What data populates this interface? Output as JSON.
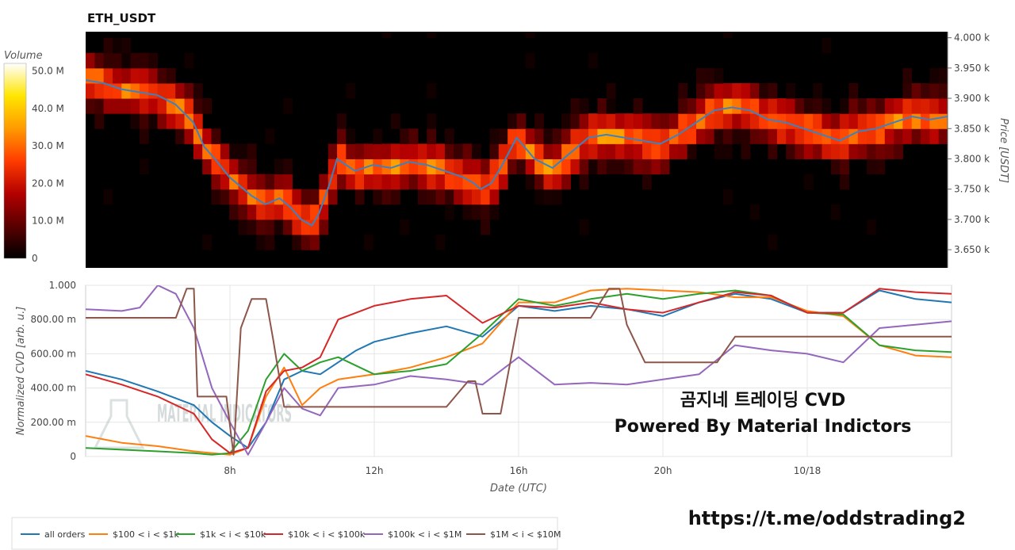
{
  "chart_data": [
    {
      "type": "heatmap",
      "title": "ETH_USDT",
      "ylabel": "Price [USDT]",
      "ylim": [
        3620,
        4010
      ],
      "price_bins": [
        3650,
        3675,
        3700,
        3725,
        3750,
        3775,
        3800,
        3825,
        3850,
        3875,
        3900,
        3925,
        3950,
        3975,
        4000
      ],
      "y_ticks": [
        3650,
        3700,
        3750,
        3800,
        3850,
        3900,
        3950,
        4000
      ],
      "y_tick_labels": [
        "3.650 k",
        "3.700 k",
        "3.750 k",
        "3.800 k",
        "3.850 k",
        "3.900 k",
        "3.950 k",
        "4.000 k"
      ],
      "colorbar": {
        "title": "Volume",
        "ticks": [
          0,
          10,
          20,
          30,
          40,
          50
        ],
        "tick_labels": [
          "0",
          "10.0 M",
          "20.0 M",
          "30.0 M",
          "40.0 M",
          "50.0 M"
        ],
        "colors": [
          "#000000",
          "#5a0000",
          "#b40000",
          "#ff3c00",
          "#ff9b00",
          "#ffe600",
          "#ffffff"
        ]
      },
      "price_line": {
        "name": "price",
        "color": "#3b82c4",
        "x": [
          4.0,
          4.5,
          5.0,
          5.5,
          6.0,
          6.5,
          7.0,
          7.3,
          7.6,
          8.0,
          8.3,
          8.6,
          9.0,
          9.4,
          9.7,
          10.0,
          10.3,
          10.5,
          10.8,
          11.0,
          11.5,
          12.0,
          12.5,
          13.0,
          13.5,
          14.0,
          14.5,
          14.8,
          15.0,
          15.3,
          15.6,
          16.0,
          16.5,
          17.0,
          17.5,
          18.0,
          18.5,
          19.0,
          19.5,
          20.0,
          20.5,
          21.0,
          21.5,
          22.0,
          22.5,
          23.0,
          23.5,
          24.0,
          24.5,
          25.0,
          25.5,
          26.0,
          26.5,
          27.0,
          27.5,
          28.0
        ],
        "y": [
          3930,
          3925,
          3915,
          3910,
          3905,
          3890,
          3860,
          3820,
          3800,
          3770,
          3755,
          3740,
          3725,
          3735,
          3720,
          3700,
          3690,
          3710,
          3760,
          3800,
          3780,
          3790,
          3785,
          3795,
          3790,
          3780,
          3770,
          3760,
          3750,
          3760,
          3790,
          3835,
          3800,
          3785,
          3810,
          3835,
          3840,
          3835,
          3830,
          3825,
          3840,
          3860,
          3880,
          3885,
          3880,
          3865,
          3860,
          3850,
          3840,
          3830,
          3845,
          3850,
          3860,
          3870,
          3865,
          3870
        ]
      }
    },
    {
      "type": "line",
      "xlabel": "Date (UTC)",
      "ylabel": "Normalized CVD [arb. u.]",
      "xlim": [
        4.0,
        28.0
      ],
      "ylim": [
        0,
        1.0
      ],
      "x_ticks": [
        8,
        12,
        16,
        20,
        24
      ],
      "x_tick_labels": [
        "8h",
        "12h",
        "16h",
        "20h",
        "10/18"
      ],
      "y_ticks": [
        0,
        0.2,
        0.4,
        0.6,
        0.8,
        1.0
      ],
      "y_tick_labels": [
        "0",
        "200.00 m",
        "400.00 m",
        "600.00 m",
        "800.00 m",
        "1.000"
      ],
      "series": [
        {
          "name": "all orders",
          "color": "#1f77b4",
          "x": [
            4.0,
            5.0,
            6.0,
            7.0,
            7.5,
            8.0,
            8.5,
            9.0,
            9.5,
            10.0,
            10.5,
            11.0,
            11.5,
            12.0,
            13.0,
            14.0,
            15.0,
            16.0,
            17.0,
            18.0,
            19.0,
            20.0,
            21.0,
            22.0,
            23.0,
            24.0,
            25.0,
            26.0,
            27.0,
            28.0
          ],
          "y": [
            0.5,
            0.45,
            0.38,
            0.3,
            0.2,
            0.12,
            0.05,
            0.2,
            0.45,
            0.5,
            0.48,
            0.55,
            0.62,
            0.67,
            0.72,
            0.76,
            0.7,
            0.88,
            0.85,
            0.88,
            0.86,
            0.82,
            0.9,
            0.95,
            0.92,
            0.84,
            0.84,
            0.97,
            0.92,
            0.9
          ]
        },
        {
          "name": "$100 < i < $1k",
          "color": "#ff7f0e",
          "x": [
            4.0,
            5.0,
            6.0,
            7.0,
            7.5,
            8.0,
            8.5,
            9.0,
            9.5,
            10.0,
            10.5,
            11.0,
            12.0,
            13.0,
            14.0,
            15.0,
            16.0,
            17.0,
            18.0,
            19.0,
            20.0,
            21.0,
            22.0,
            23.0,
            24.0,
            25.0,
            26.0,
            27.0,
            28.0
          ],
          "y": [
            0.12,
            0.08,
            0.06,
            0.03,
            0.02,
            0.01,
            0.05,
            0.35,
            0.52,
            0.3,
            0.4,
            0.45,
            0.48,
            0.52,
            0.58,
            0.66,
            0.9,
            0.9,
            0.97,
            0.98,
            0.97,
            0.96,
            0.93,
            0.93,
            0.85,
            0.82,
            0.65,
            0.59,
            0.58
          ]
        },
        {
          "name": "$1k < i < $10k",
          "color": "#2ca02c",
          "x": [
            4.0,
            5.0,
            6.0,
            7.0,
            7.5,
            8.0,
            8.5,
            9.0,
            9.5,
            10.0,
            10.5,
            11.0,
            12.0,
            13.0,
            14.0,
            15.0,
            16.0,
            17.0,
            18.0,
            19.0,
            20.0,
            21.0,
            22.0,
            23.0,
            24.0,
            25.0,
            26.0,
            27.0,
            28.0
          ],
          "y": [
            0.05,
            0.04,
            0.03,
            0.02,
            0.01,
            0.02,
            0.15,
            0.45,
            0.6,
            0.5,
            0.55,
            0.58,
            0.48,
            0.5,
            0.54,
            0.72,
            0.92,
            0.88,
            0.92,
            0.95,
            0.92,
            0.95,
            0.97,
            0.94,
            0.84,
            0.83,
            0.65,
            0.62,
            0.61
          ]
        },
        {
          "name": "$10k < i < $100k",
          "color": "#d62728",
          "x": [
            4.0,
            5.0,
            6.0,
            7.0,
            7.5,
            8.0,
            8.5,
            9.0,
            9.5,
            10.0,
            10.5,
            11.0,
            11.5,
            12.0,
            13.0,
            14.0,
            15.0,
            16.0,
            17.0,
            18.0,
            19.0,
            20.0,
            21.0,
            22.0,
            23.0,
            24.0,
            25.0,
            26.0,
            27.0,
            28.0
          ],
          "y": [
            0.48,
            0.42,
            0.35,
            0.25,
            0.1,
            0.02,
            0.05,
            0.38,
            0.5,
            0.52,
            0.58,
            0.8,
            0.84,
            0.88,
            0.92,
            0.94,
            0.78,
            0.88,
            0.87,
            0.9,
            0.86,
            0.84,
            0.9,
            0.96,
            0.94,
            0.84,
            0.84,
            0.98,
            0.96,
            0.95
          ]
        },
        {
          "name": "$100k < i < $1M",
          "color": "#9467bd",
          "x": [
            4.0,
            5.0,
            5.5,
            6.0,
            6.5,
            7.0,
            7.5,
            8.0,
            8.5,
            9.0,
            9.5,
            10.0,
            10.5,
            11.0,
            12.0,
            13.0,
            14.0,
            15.0,
            16.0,
            17.0,
            18.0,
            19.0,
            20.0,
            21.0,
            22.0,
            23.0,
            24.0,
            25.0,
            26.0,
            27.0,
            28.0
          ],
          "y": [
            0.86,
            0.85,
            0.87,
            1.0,
            0.95,
            0.75,
            0.4,
            0.2,
            0.01,
            0.2,
            0.4,
            0.28,
            0.24,
            0.4,
            0.42,
            0.47,
            0.45,
            0.42,
            0.58,
            0.42,
            0.43,
            0.42,
            0.45,
            0.48,
            0.65,
            0.62,
            0.6,
            0.55,
            0.75,
            0.77,
            0.79
          ]
        },
        {
          "name": "$1M < i < $10M",
          "color": "#8c564b",
          "x": [
            4.0,
            6.5,
            6.8,
            7.0,
            7.1,
            7.3,
            7.6,
            7.9,
            8.1,
            8.3,
            8.6,
            9.0,
            9.2,
            9.5,
            10.0,
            12.0,
            14.0,
            14.6,
            14.8,
            15.0,
            15.5,
            16.0,
            18.0,
            18.5,
            18.8,
            19.0,
            19.5,
            21.5,
            22.0,
            26.0,
            28.0
          ],
          "y": [
            0.81,
            0.81,
            0.98,
            0.98,
            0.35,
            0.35,
            0.35,
            0.35,
            0.01,
            0.75,
            0.92,
            0.92,
            0.68,
            0.29,
            0.29,
            0.29,
            0.29,
            0.44,
            0.44,
            0.25,
            0.25,
            0.81,
            0.81,
            0.98,
            0.98,
            0.77,
            0.55,
            0.55,
            0.7,
            0.7,
            0.7
          ]
        }
      ],
      "annotations": [
        "곰지네 트레이딩 CVD",
        "Powered By Material Indictors",
        "https://t.me/oddstrading2"
      ],
      "watermark": "MATERIAL INDICATORS",
      "legend": "bottom-left",
      "grid": true
    }
  ]
}
